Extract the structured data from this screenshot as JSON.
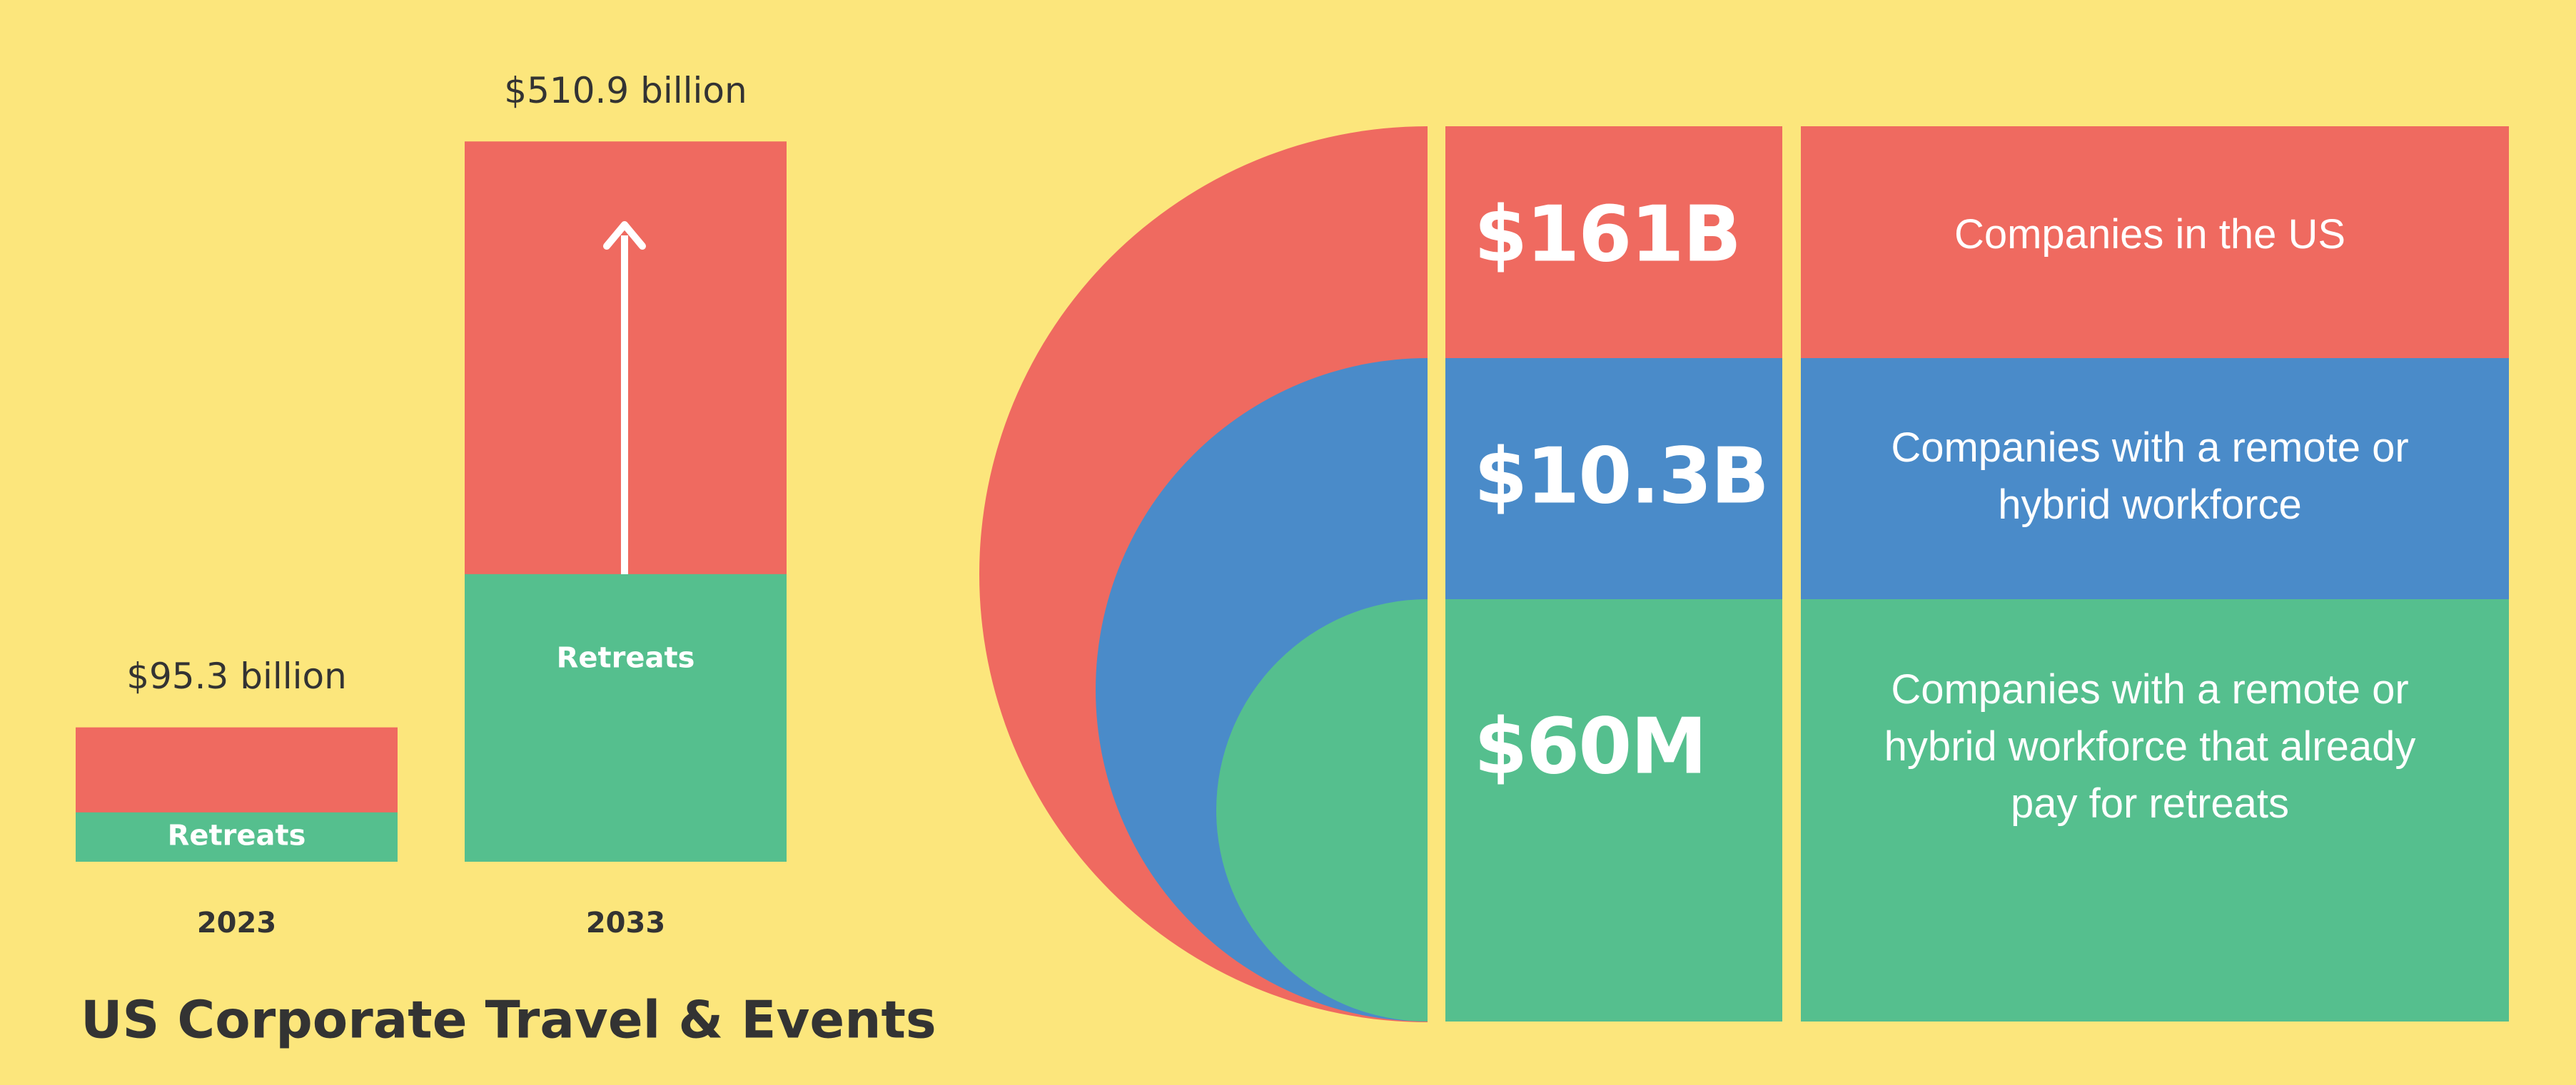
{
  "chart_data": {
    "type": "bar",
    "title": "US Corporate Travel & Events",
    "categories": [
      "2023",
      "2033"
    ],
    "values": [
      95.3,
      510.9
    ],
    "value_labels": [
      "$95.3 billion",
      "$510.9 billion"
    ],
    "color": "#EF6A60",
    "segment": {
      "name": "Retreats",
      "values": [
        35,
        204
      ],
      "color": "#55BF8E"
    },
    "ylim": [
      0,
      550
    ]
  },
  "market": {
    "rows": [
      {
        "value": "$161B",
        "label": "Companies in the US",
        "color": "#EF6A60"
      },
      {
        "value": "$10.3B",
        "label": "Companies with a remote or hybrid workforce",
        "color": "#4A8BC9"
      },
      {
        "value": "$60M",
        "label": "Companies with a remote or hybrid workforce that already pay for retreats",
        "color": "#55BF8E"
      }
    ]
  }
}
